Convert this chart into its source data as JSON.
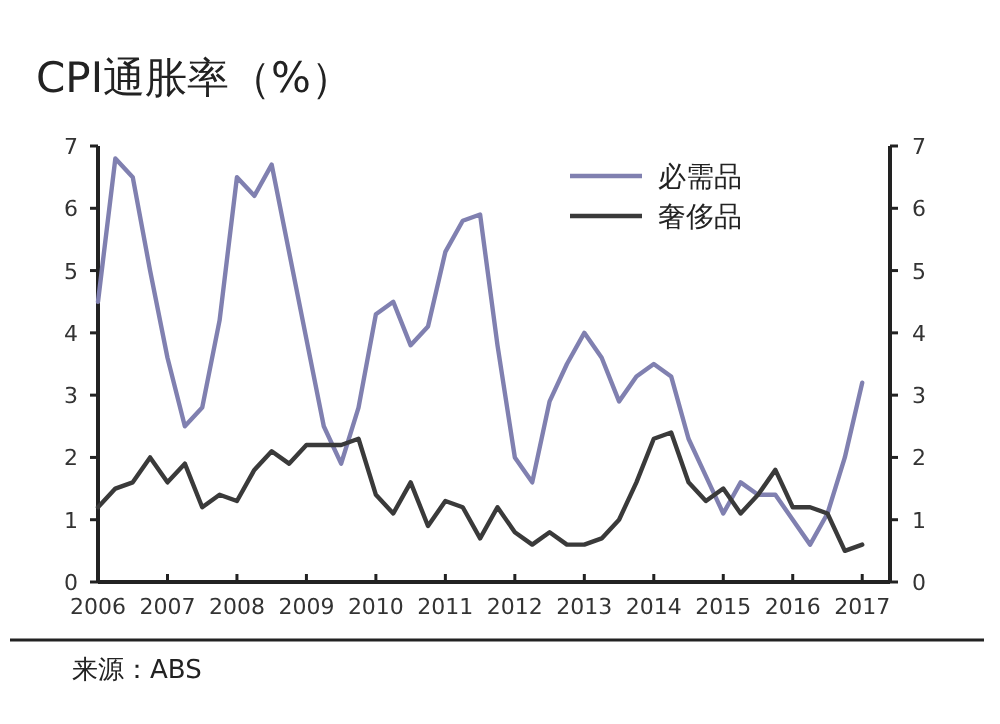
{
  "chart_data": {
    "type": "line",
    "title": "CPI通胀率（%）",
    "annotations": [
      "来源：ABS"
    ],
    "x": [
      2006,
      2006.25,
      2006.5,
      2006.75,
      2007,
      2007.25,
      2007.5,
      2007.75,
      2008,
      2008.25,
      2008.5,
      2008.75,
      2009,
      2009.25,
      2009.5,
      2009.75,
      2010,
      2010.25,
      2010.5,
      2010.75,
      2011,
      2011.25,
      2011.5,
      2011.75,
      2012,
      2012.25,
      2012.5,
      2012.75,
      2013,
      2013.25,
      2013.5,
      2013.75,
      2014,
      2014.25,
      2014.5,
      2014.75,
      2015,
      2015.25,
      2015.5,
      2015.75,
      2016,
      2016.25,
      2016.5,
      2016.75,
      2017
    ],
    "series": [
      {
        "name": "必需品",
        "color": "#8080b0",
        "values": [
          4.5,
          6.8,
          6.5,
          5.0,
          3.6,
          2.5,
          2.8,
          4.2,
          6.5,
          6.2,
          6.7,
          5.3,
          3.9,
          2.5,
          1.9,
          2.8,
          4.3,
          4.5,
          3.8,
          4.1,
          5.3,
          5.8,
          5.9,
          3.8,
          2.0,
          1.6,
          2.9,
          3.5,
          4.0,
          3.6,
          2.9,
          3.3,
          3.5,
          3.3,
          2.3,
          1.7,
          1.1,
          1.6,
          1.4,
          1.4,
          1.0,
          0.6,
          1.1,
          2.0,
          3.2
        ]
      },
      {
        "name": "奢侈品",
        "color": "#3a3a3a",
        "values": [
          1.2,
          1.5,
          1.6,
          2.0,
          1.6,
          1.9,
          1.2,
          1.4,
          1.3,
          1.8,
          2.1,
          1.9,
          2.2,
          2.2,
          2.2,
          2.3,
          1.4,
          1.1,
          1.6,
          0.9,
          1.3,
          1.2,
          0.7,
          1.2,
          0.8,
          0.6,
          0.8,
          0.6,
          0.6,
          0.7,
          1.0,
          1.6,
          2.3,
          2.4,
          1.6,
          1.3,
          1.5,
          1.1,
          1.4,
          1.8,
          1.2,
          1.2,
          1.1,
          0.5,
          0.6
        ]
      }
    ],
    "xlim": [
      2006,
      2017.4
    ],
    "xticks": [
      2006,
      2007,
      2008,
      2009,
      2010,
      2011,
      2012,
      2013,
      2014,
      2015,
      2016,
      2017
    ],
    "ylim": [
      0,
      7
    ],
    "yticks": [
      0,
      1,
      2,
      3,
      4,
      5,
      6,
      7
    ],
    "y2lim": [
      0,
      7
    ],
    "y2ticks": [
      0,
      1,
      2,
      3,
      4,
      5,
      6,
      7
    ],
    "legend": "top right",
    "grid": false,
    "marker": "none",
    "line_style": "solid"
  }
}
